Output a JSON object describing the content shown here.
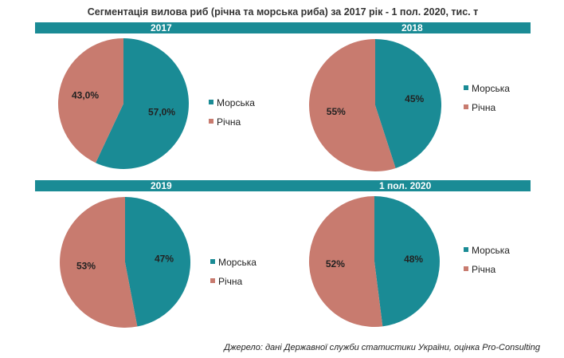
{
  "title": "Сегментація  вилова риб (річна та морська риба)  за 2017 рік - 1 пол. 2020, тис. т",
  "source": "Джерело: дані Державної служби статистики України, оцінка Pro-Consulting",
  "colors": {
    "band": "#1a8b95",
    "sea": "#1a8b95",
    "river": "#c87b6f"
  },
  "chart_data": [
    {
      "type": "pie",
      "title": "2017",
      "categories": [
        "Морська",
        "Річна"
      ],
      "values": [
        57.0,
        43.0
      ],
      "labels": [
        "57,0%",
        "43,0%"
      ],
      "colors": [
        "#1a8b95",
        "#c87b6f"
      ],
      "legend": "right"
    },
    {
      "type": "pie",
      "title": "2018",
      "categories": [
        "Морська",
        "Річна"
      ],
      "values": [
        45,
        55
      ],
      "labels": [
        "45%",
        "55%"
      ],
      "colors": [
        "#1a8b95",
        "#c87b6f"
      ],
      "legend": "right"
    },
    {
      "type": "pie",
      "title": "2019",
      "categories": [
        "Морська",
        "Річна"
      ],
      "values": [
        47,
        53
      ],
      "labels": [
        "47%",
        "53%"
      ],
      "colors": [
        "#1a8b95",
        "#c87b6f"
      ],
      "legend": "right"
    },
    {
      "type": "pie",
      "title": "1 пол. 2020",
      "categories": [
        "Морська",
        "Річна"
      ],
      "values": [
        48,
        52
      ],
      "labels": [
        "48%",
        "52%"
      ],
      "colors": [
        "#1a8b95",
        "#c87b6f"
      ],
      "legend": "right"
    }
  ]
}
